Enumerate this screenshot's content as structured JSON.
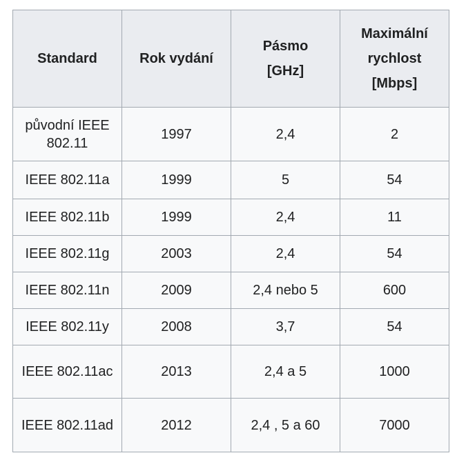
{
  "colors": {
    "header_background": "#eaecf0",
    "row_background": "#f8f9fa",
    "border": "#a2a9b1",
    "text": "#202122",
    "page_background": "#ffffff"
  },
  "chart_data": {
    "type": "table",
    "title": "",
    "headers": [
      {
        "label": "Standard",
        "lines": [
          "Standard"
        ]
      },
      {
        "label": "Rok vydání",
        "lines": [
          "Rok vydání"
        ]
      },
      {
        "label": "Pásmo [GHz]",
        "lines": [
          "Pásmo",
          "[GHz]"
        ]
      },
      {
        "label": "Maximální rychlost [Mbps]",
        "lines": [
          "Maximální",
          "rychlost",
          "[Mbps]"
        ]
      }
    ],
    "rows": [
      {
        "standard": "původní IEEE 802.11",
        "year": "1997",
        "band": "2,4",
        "speed": "2"
      },
      {
        "standard": "IEEE 802.11a",
        "year": "1999",
        "band": "5",
        "speed": "54"
      },
      {
        "standard": "IEEE 802.11b",
        "year": "1999",
        "band": "2,4",
        "speed": "11"
      },
      {
        "standard": "IEEE 802.11g",
        "year": "2003",
        "band": "2,4",
        "speed": "54"
      },
      {
        "standard": "IEEE 802.11n",
        "year": "2009",
        "band": "2,4 nebo 5",
        "speed": "600"
      },
      {
        "standard": "IEEE 802.11y",
        "year": "2008",
        "band": "3,7",
        "speed": "54"
      },
      {
        "standard": "IEEE 802.11ac",
        "year": "2013",
        "band": "2,4 a 5",
        "speed": "1000"
      },
      {
        "standard": "IEEE 802.11ad",
        "year": "2012",
        "band": "2,4 , 5 a 60",
        "speed": "7000"
      }
    ]
  }
}
